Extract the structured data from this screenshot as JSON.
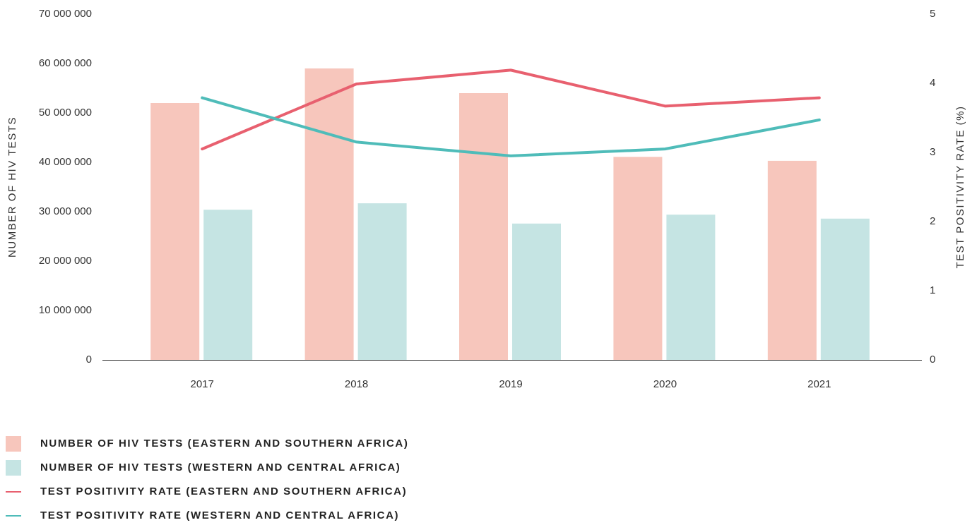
{
  "chart_data": {
    "type": "bar",
    "categories": [
      "2017",
      "2018",
      "2019",
      "2020",
      "2021"
    ],
    "y_label": "NUMBER OF HIV TESTS",
    "y2_label": "TEST POSITIVITY RATE (%)",
    "ylim": [
      0,
      70000000
    ],
    "yticks": [
      0,
      {
        "value": 10000000,
        "label": "10 000 000"
      },
      {
        "value": 20000000,
        "label": "20 000 000"
      },
      {
        "value": 30000000,
        "label": "30 000 000"
      },
      {
        "value": 40000000,
        "label": "40 000 000"
      },
      {
        "value": 50000000,
        "label": "50 000 000"
      },
      {
        "value": 60000000,
        "label": "60 000 000"
      },
      {
        "value": 70000000,
        "label": "70 000 000"
      }
    ],
    "y2lim": [
      0,
      5
    ],
    "y2ticks": [
      0,
      1,
      2,
      3,
      4,
      5
    ],
    "grid": false,
    "legend": "bottom-left",
    "series": [
      {
        "name": "NUMBER OF HIV TESTS (EASTERN AND SOUTHERN AFRICA)",
        "type": "bar",
        "color": "#f7c6bc",
        "values": [
          52000000,
          59000000,
          54000000,
          41100000,
          40300000
        ]
      },
      {
        "name": "NUMBER OF HIV TESTS (WESTERN AND CENTRAL AFRICA)",
        "type": "bar",
        "color": "#c5e4e3",
        "values": [
          30400000,
          31700000,
          27600000,
          29400000,
          28600000
        ]
      },
      {
        "name": "TEST POSITIVITY RATE (EASTERN AND SOUTHERN AFRICA)",
        "type": "line",
        "axis": "y2",
        "color": "#e8606f",
        "values": [
          3.05,
          3.99,
          4.19,
          3.67,
          3.79
        ]
      },
      {
        "name": "TEST POSITIVITY RATE (WESTERN AND CENTRAL AFRICA)",
        "type": "line",
        "axis": "y2",
        "color": "#4fbcb9",
        "values": [
          3.79,
          3.15,
          2.95,
          3.05,
          3.47
        ]
      }
    ]
  }
}
